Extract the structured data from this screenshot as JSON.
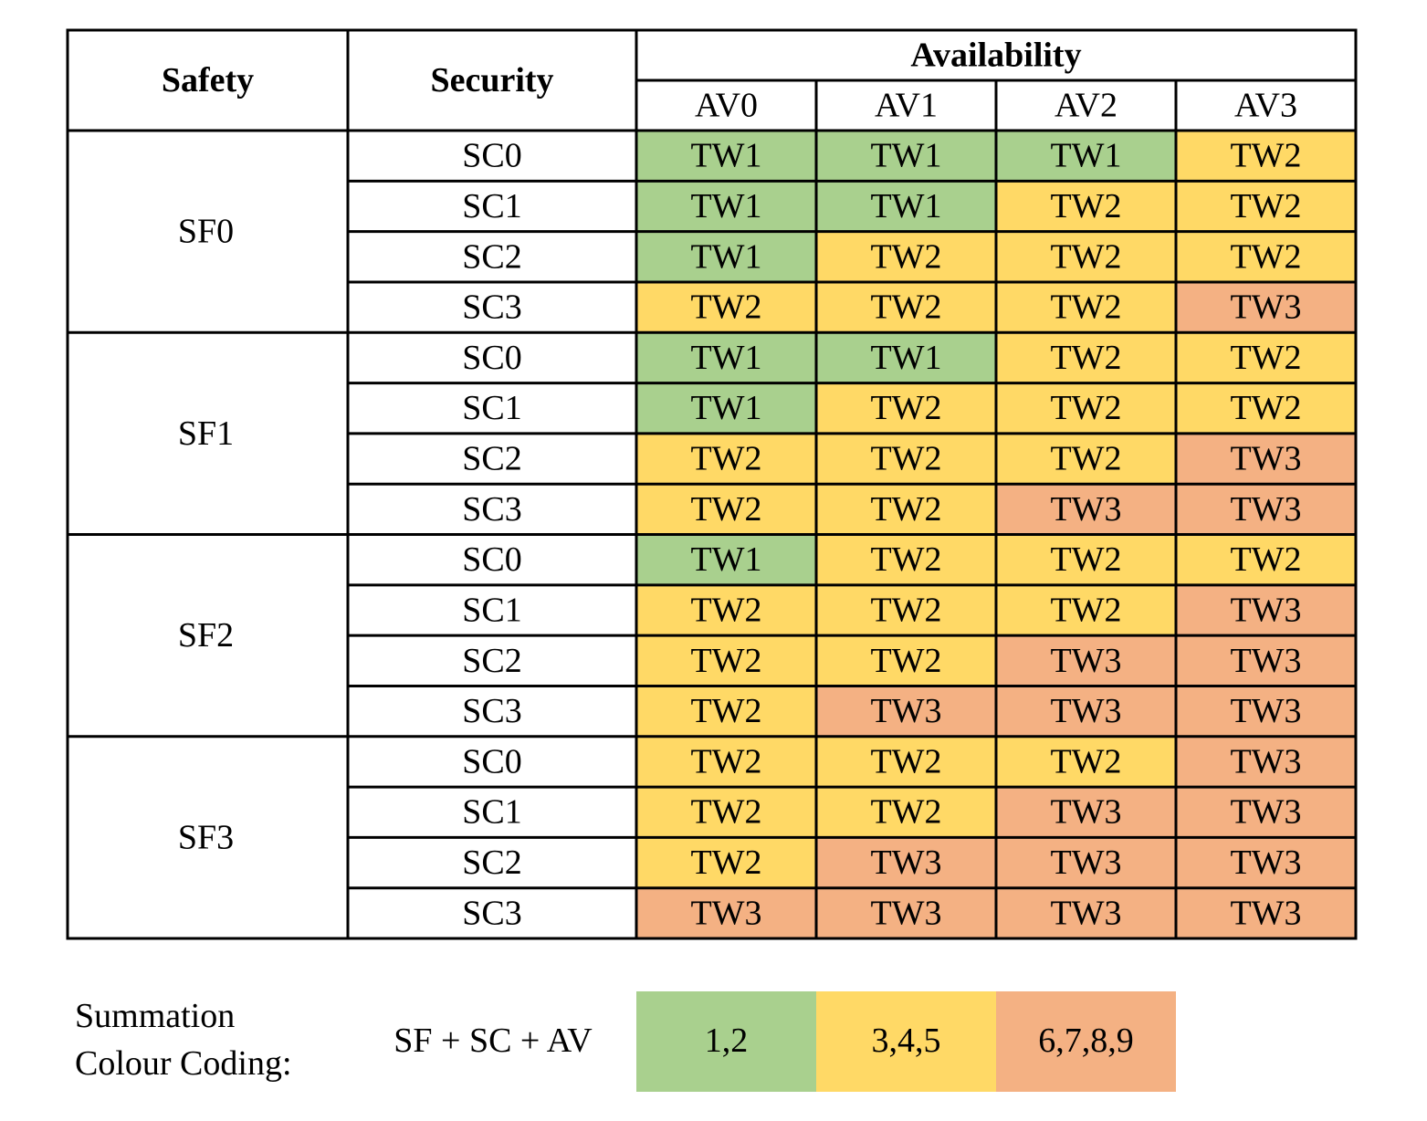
{
  "table": {
    "headers": {
      "safety": "Safety",
      "security": "Security",
      "availability": "Availability",
      "levels": [
        "AV0",
        "AV1",
        "AV2",
        "AV3"
      ]
    },
    "cell_colors": {
      "TW1": "#a9d08e",
      "TW2": "#ffd966",
      "TW3": "#f4b183"
    },
    "groups": [
      {
        "safety": "SF0",
        "rows": [
          {
            "security": "SC0",
            "cells": [
              "TW1",
              "TW1",
              "TW1",
              "TW2"
            ]
          },
          {
            "security": "SC1",
            "cells": [
              "TW1",
              "TW1",
              "TW2",
              "TW2"
            ]
          },
          {
            "security": "SC2",
            "cells": [
              "TW1",
              "TW2",
              "TW2",
              "TW2"
            ]
          },
          {
            "security": "SC3",
            "cells": [
              "TW2",
              "TW2",
              "TW2",
              "TW3"
            ]
          }
        ]
      },
      {
        "safety": "SF1",
        "rows": [
          {
            "security": "SC0",
            "cells": [
              "TW1",
              "TW1",
              "TW2",
              "TW2"
            ]
          },
          {
            "security": "SC1",
            "cells": [
              "TW1",
              "TW2",
              "TW2",
              "TW2"
            ]
          },
          {
            "security": "SC2",
            "cells": [
              "TW2",
              "TW2",
              "TW2",
              "TW3"
            ]
          },
          {
            "security": "SC3",
            "cells": [
              "TW2",
              "TW2",
              "TW3",
              "TW3"
            ]
          }
        ]
      },
      {
        "safety": "SF2",
        "rows": [
          {
            "security": "SC0",
            "cells": [
              "TW1",
              "TW2",
              "TW2",
              "TW2"
            ]
          },
          {
            "security": "SC1",
            "cells": [
              "TW2",
              "TW2",
              "TW2",
              "TW3"
            ]
          },
          {
            "security": "SC2",
            "cells": [
              "TW2",
              "TW2",
              "TW3",
              "TW3"
            ]
          },
          {
            "security": "SC3",
            "cells": [
              "TW2",
              "TW3",
              "TW3",
              "TW3"
            ]
          }
        ]
      },
      {
        "safety": "SF3",
        "rows": [
          {
            "security": "SC0",
            "cells": [
              "TW2",
              "TW2",
              "TW2",
              "TW3"
            ]
          },
          {
            "security": "SC1",
            "cells": [
              "TW2",
              "TW2",
              "TW3",
              "TW3"
            ]
          },
          {
            "security": "SC2",
            "cells": [
              "TW2",
              "TW3",
              "TW3",
              "TW3"
            ]
          },
          {
            "security": "SC3",
            "cells": [
              "TW3",
              "TW3",
              "TW3",
              "TW3"
            ]
          }
        ]
      }
    ]
  },
  "legend": {
    "title_lines": [
      "Summation",
      "Colour Coding:"
    ],
    "formula": "SF + SC + AV",
    "items": [
      {
        "label": "1,2",
        "color": "#a9d08e"
      },
      {
        "label": "3,4,5",
        "color": "#ffd966"
      },
      {
        "label": "6,7,8,9",
        "color": "#f4b183"
      }
    ]
  }
}
